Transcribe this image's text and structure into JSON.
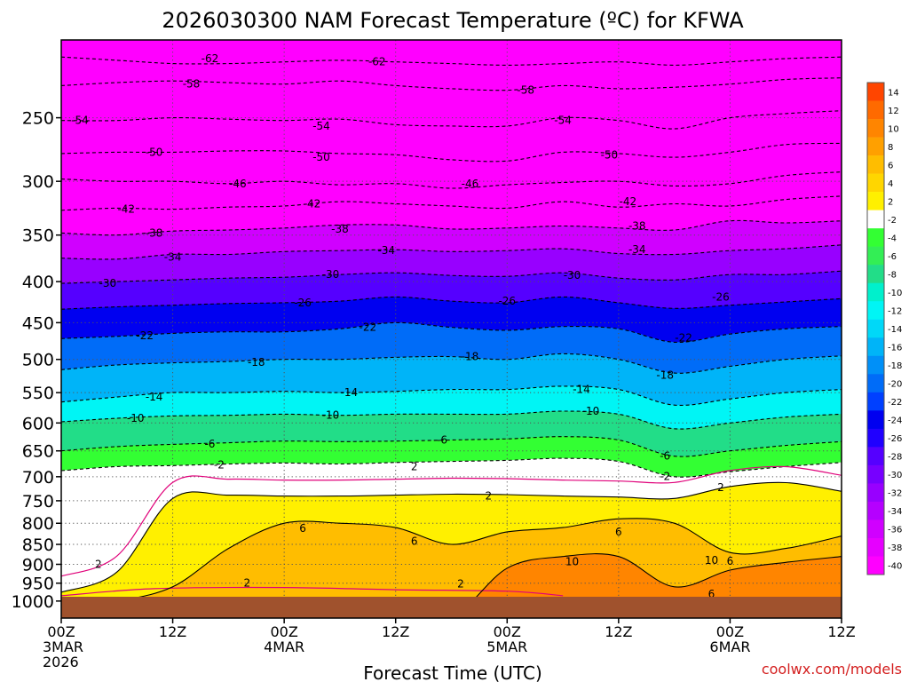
{
  "title": "2026030300 NAM Forecast Temperature (ºC) for KFWA",
  "xlabel": "Forecast Time (UTC)",
  "credit": "coolwx.com/models",
  "colors": {
    "ground": "#a0522d",
    "freezing_line": "#e0007a",
    "contour": "#000000"
  },
  "chart_data": {
    "type": "heatmap",
    "title": "2026030300 NAM Forecast Temperature (ºC) for KFWA",
    "xlabel": "Forecast Time (UTC)",
    "ylabel": "",
    "y_scale": "log-pressure (hPa, inverted)",
    "ylim": [
      1050,
      200
    ],
    "xlim_hours": [
      0,
      84
    ],
    "y_ticks": [
      250,
      300,
      350,
      400,
      450,
      500,
      550,
      600,
      650,
      700,
      750,
      800,
      850,
      900,
      950,
      1000
    ],
    "x_ticks": [
      {
        "hour": 0,
        "l1": "00Z",
        "l2": "3MAR",
        "l3": "2026"
      },
      {
        "hour": 12,
        "l1": "12Z",
        "l2": "",
        "l3": ""
      },
      {
        "hour": 24,
        "l1": "00Z",
        "l2": "4MAR",
        "l3": ""
      },
      {
        "hour": 36,
        "l1": "12Z",
        "l2": "",
        "l3": ""
      },
      {
        "hour": 48,
        "l1": "00Z",
        "l2": "5MAR",
        "l3": ""
      },
      {
        "hour": 60,
        "l1": "12Z",
        "l2": "",
        "l3": ""
      },
      {
        "hour": 72,
        "l1": "00Z",
        "l2": "6MAR",
        "l3": ""
      },
      {
        "hour": 84,
        "l1": "12Z",
        "l2": "",
        "l3": ""
      }
    ],
    "colorbar": {
      "labels": [
        "14",
        "12",
        "10",
        "8",
        "6",
        "4",
        "2",
        "-2",
        "-4",
        "-6",
        "-8",
        "-10",
        "-12",
        "-14",
        "-16",
        "-18",
        "-20",
        "-22",
        "-24",
        "-26",
        "-28",
        "-30",
        "-32",
        "-34",
        "-36",
        "-38",
        "-40"
      ],
      "colors": [
        "#ff4500",
        "#ff6a00",
        "#ff8500",
        "#ffa000",
        "#ffbd00",
        "#ffd600",
        "#fff000",
        "#ffffff",
        "#33ff33",
        "#33ee55",
        "#22dd88",
        "#00f0cc",
        "#00f5f5",
        "#00d8f8",
        "#00b4f8",
        "#0090f8",
        "#006cf8",
        "#0040ff",
        "#0000f0",
        "#2000ff",
        "#5500ff",
        "#7700ff",
        "#9800ff",
        "#b500ff",
        "#d000ff",
        "#e600ff",
        "#ff00ff"
      ]
    },
    "hours": [
      0,
      6,
      12,
      18,
      24,
      30,
      36,
      42,
      48,
      54,
      60,
      66,
      72,
      78,
      84
    ],
    "isotherms": [
      {
        "t": -62,
        "p": [
          210,
          212,
          214,
          214,
          213,
          212,
          213,
          214,
          215,
          214,
          213,
          215,
          213,
          211,
          210
        ]
      },
      {
        "t": -58,
        "p": [
          228,
          226,
          225,
          226,
          227,
          225,
          228,
          230,
          231,
          228,
          230,
          229,
          227,
          224,
          223
        ]
      },
      {
        "t": -54,
        "p": [
          252,
          252,
          250,
          251,
          252,
          251,
          255,
          256,
          256,
          250,
          252,
          258,
          250,
          247,
          245
        ]
      },
      {
        "t": -50,
        "p": [
          277,
          276,
          276,
          275,
          275,
          277,
          278,
          282,
          283,
          276,
          277,
          280,
          276,
          270,
          269
        ]
      },
      {
        "t": -46,
        "p": [
          298,
          300,
          300,
          302,
          300,
          303,
          302,
          306,
          303,
          301,
          300,
          304,
          302,
          295,
          292
        ]
      },
      {
        "t": -42,
        "p": [
          326,
          324,
          325,
          323,
          322,
          318,
          320,
          322,
          324,
          318,
          323,
          320,
          322,
          316,
          313
        ]
      },
      {
        "t": -38,
        "p": [
          348,
          350,
          346,
          345,
          343,
          340,
          340,
          344,
          343,
          341,
          343,
          345,
          336,
          338,
          336
        ]
      },
      {
        "t": -34,
        "p": [
          374,
          375,
          370,
          370,
          367,
          366,
          365,
          367,
          366,
          364,
          369,
          370,
          366,
          364,
          360
        ]
      },
      {
        "t": -30,
        "p": [
          402,
          400,
          398,
          396,
          395,
          392,
          390,
          393,
          394,
          390,
          396,
          398,
          392,
          392,
          388
        ]
      },
      {
        "t": -26,
        "p": [
          433,
          430,
          428,
          426,
          425,
          423,
          418,
          423,
          425,
          418,
          425,
          432,
          428,
          424,
          420
        ]
      },
      {
        "t": -22,
        "p": [
          471,
          468,
          464,
          462,
          462,
          458,
          450,
          456,
          460,
          455,
          458,
          476,
          465,
          458,
          455
        ]
      },
      {
        "t": -18,
        "p": [
          515,
          508,
          505,
          503,
          500,
          500,
          497,
          496,
          500,
          492,
          500,
          520,
          510,
          500,
          495
        ]
      },
      {
        "t": -14,
        "p": [
          565,
          557,
          550,
          550,
          548,
          550,
          548,
          545,
          545,
          540,
          545,
          570,
          560,
          550,
          545
        ]
      },
      {
        "t": -10,
        "p": [
          598,
          592,
          588,
          587,
          585,
          587,
          585,
          585,
          585,
          580,
          585,
          610,
          600,
          590,
          585
        ]
      },
      {
        "t": -6,
        "p": [
          650,
          642,
          638,
          635,
          632,
          633,
          632,
          630,
          628,
          624,
          630,
          660,
          650,
          640,
          633
        ]
      },
      {
        "t": -2,
        "p": [
          688,
          680,
          678,
          675,
          673,
          675,
          672,
          670,
          668,
          664,
          670,
          700,
          690,
          680,
          672
        ]
      },
      {
        "t": 2,
        "p": [
          975,
          920,
          745,
          738,
          740,
          740,
          738,
          736,
          737,
          740,
          742,
          745,
          720,
          712,
          730
        ]
      },
      {
        "t": 6,
        "p": [
          1020,
          1000,
          960,
          860,
          800,
          800,
          810,
          850,
          820,
          810,
          790,
          800,
          870,
          860,
          830
        ]
      },
      {
        "t": 10,
        "p": [
          1050,
          1050,
          1050,
          1050,
          1050,
          1050,
          1050,
          1050,
          910,
          880,
          880,
          960,
          915,
          895,
          880
        ]
      },
      {
        "t": 14,
        "p": [
          1050,
          1050,
          1050,
          1050,
          1050,
          1050,
          1050,
          1050,
          1050,
          1050,
          1050,
          1050,
          1050,
          1050,
          1050
        ]
      }
    ],
    "contour_labels": [
      {
        "h": 16,
        "p": 211,
        "text": "-62"
      },
      {
        "h": 34,
        "p": 213,
        "text": "-62"
      },
      {
        "h": 14,
        "p": 227,
        "text": "-58"
      },
      {
        "h": 50,
        "p": 231,
        "text": "-58"
      },
      {
        "h": 2,
        "p": 252,
        "text": "-54"
      },
      {
        "h": 28,
        "p": 256,
        "text": "-54"
      },
      {
        "h": 54,
        "p": 252,
        "text": "-54"
      },
      {
        "h": 10,
        "p": 276,
        "text": "-50"
      },
      {
        "h": 28,
        "p": 280,
        "text": "-50"
      },
      {
        "h": 59,
        "p": 278,
        "text": "-50"
      },
      {
        "h": 19,
        "p": 302,
        "text": "-46"
      },
      {
        "h": 44,
        "p": 302,
        "text": "-46"
      },
      {
        "h": 7,
        "p": 325,
        "text": "-42"
      },
      {
        "h": 27,
        "p": 320,
        "text": "-42"
      },
      {
        "h": 61,
        "p": 318,
        "text": "-42"
      },
      {
        "h": 10,
        "p": 348,
        "text": "-38"
      },
      {
        "h": 30,
        "p": 344,
        "text": "-38"
      },
      {
        "h": 62,
        "p": 341,
        "text": "-38"
      },
      {
        "h": 12,
        "p": 373,
        "text": "-34"
      },
      {
        "h": 35,
        "p": 366,
        "text": "-34"
      },
      {
        "h": 62,
        "p": 365,
        "text": "-34"
      },
      {
        "h": 5,
        "p": 402,
        "text": "-30"
      },
      {
        "h": 29,
        "p": 392,
        "text": "-30"
      },
      {
        "h": 55,
        "p": 393,
        "text": "-30"
      },
      {
        "h": 26,
        "p": 425,
        "text": "-26"
      },
      {
        "h": 48,
        "p": 423,
        "text": "-26"
      },
      {
        "h": 71,
        "p": 418,
        "text": "-26"
      },
      {
        "h": 9,
        "p": 467,
        "text": "-22"
      },
      {
        "h": 33,
        "p": 456,
        "text": "-22"
      },
      {
        "h": 67,
        "p": 470,
        "text": "-22"
      },
      {
        "h": 21,
        "p": 504,
        "text": "-18"
      },
      {
        "h": 44,
        "p": 496,
        "text": "-18"
      },
      {
        "h": 65,
        "p": 523,
        "text": "-18"
      },
      {
        "h": 10,
        "p": 557,
        "text": "-14"
      },
      {
        "h": 31,
        "p": 550,
        "text": "-14"
      },
      {
        "h": 56,
        "p": 545,
        "text": "-14"
      },
      {
        "h": 8,
        "p": 592,
        "text": "-10"
      },
      {
        "h": 29,
        "p": 587,
        "text": "-10"
      },
      {
        "h": 57,
        "p": 580,
        "text": "-10"
      },
      {
        "h": 16,
        "p": 637,
        "text": "-6"
      },
      {
        "h": 41,
        "p": 630,
        "text": "-6"
      },
      {
        "h": 65,
        "p": 660,
        "text": "-6"
      },
      {
        "h": 17,
        "p": 677,
        "text": "-2"
      },
      {
        "h": 65,
        "p": 699,
        "text": "-2"
      },
      {
        "h": 38,
        "p": 680,
        "text": "2"
      },
      {
        "h": 46,
        "p": 740,
        "text": "2"
      },
      {
        "h": 71,
        "p": 722,
        "text": "2"
      },
      {
        "h": 4,
        "p": 900,
        "text": "2"
      },
      {
        "h": 20,
        "p": 950,
        "text": "2"
      },
      {
        "h": 43,
        "p": 952,
        "text": "2"
      },
      {
        "h": 26,
        "p": 812,
        "text": "6"
      },
      {
        "h": 38,
        "p": 842,
        "text": "6"
      },
      {
        "h": 60,
        "p": 820,
        "text": "6"
      },
      {
        "h": 70,
        "p": 980,
        "text": "6"
      },
      {
        "h": 72,
        "p": 892,
        "text": "6"
      },
      {
        "h": 55,
        "p": 893,
        "text": "10"
      },
      {
        "h": 70,
        "p": 890,
        "text": "10"
      }
    ]
  }
}
